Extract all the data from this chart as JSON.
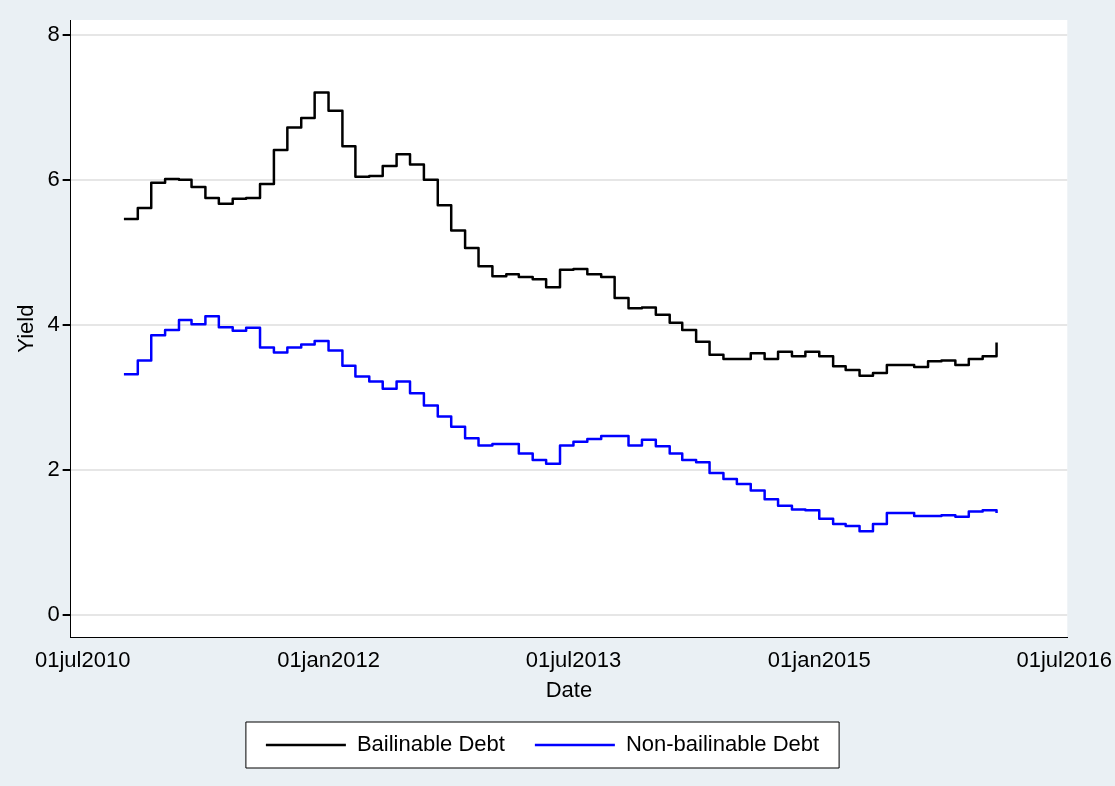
{
  "chart_data": {
    "type": "step",
    "xlabel": "Date",
    "ylabel": "Yield",
    "x": [
      "2010-10",
      "2010-11",
      "2010-12",
      "2011-01",
      "2011-02",
      "2011-03",
      "2011-04",
      "2011-05",
      "2011-06",
      "2011-07",
      "2011-08",
      "2011-09",
      "2011-10",
      "2011-11",
      "2011-12",
      "2012-01",
      "2012-02",
      "2012-03",
      "2012-04",
      "2012-05",
      "2012-06",
      "2012-07",
      "2012-08",
      "2012-09",
      "2012-10",
      "2012-11",
      "2012-12",
      "2013-01",
      "2013-02",
      "2013-03",
      "2013-04",
      "2013-05",
      "2013-06",
      "2013-07",
      "2013-08",
      "2013-09",
      "2013-10",
      "2013-11",
      "2013-12",
      "2014-01",
      "2014-02",
      "2014-03",
      "2014-04",
      "2014-05",
      "2014-06",
      "2014-07",
      "2014-08",
      "2014-09",
      "2014-10",
      "2014-11",
      "2014-12",
      "2015-01",
      "2015-02",
      "2015-03",
      "2015-04",
      "2015-05",
      "2015-06",
      "2015-07",
      "2015-08",
      "2015-09",
      "2015-10",
      "2015-11",
      "2015-12",
      "2016-01",
      "2016-02"
    ],
    "series": [
      {
        "name": "Bailinable Debt",
        "color": "#000000",
        "values": [
          5.46,
          5.61,
          5.96,
          6.01,
          6.0,
          5.9,
          5.75,
          5.67,
          5.74,
          5.75,
          5.94,
          6.41,
          6.72,
          6.85,
          7.2,
          6.95,
          6.46,
          6.04,
          6.05,
          6.19,
          6.35,
          6.21,
          6.0,
          5.65,
          5.3,
          5.06,
          4.81,
          4.67,
          4.7,
          4.66,
          4.63,
          4.52,
          4.76,
          4.77,
          4.7,
          4.66,
          4.37,
          4.23,
          4.24,
          4.14,
          4.03,
          3.93,
          3.77,
          3.59,
          3.53,
          3.53,
          3.61,
          3.53,
          3.63,
          3.57,
          3.63,
          3.57,
          3.43,
          3.38,
          3.3,
          3.34,
          3.45,
          3.45,
          3.42,
          3.5,
          3.51,
          3.45,
          3.53,
          3.57,
          3.76
        ]
      },
      {
        "name": "Non-bailinable Debt",
        "color": "#0000ff",
        "values": [
          3.32,
          3.51,
          3.86,
          3.93,
          4.07,
          4.01,
          4.12,
          3.97,
          3.92,
          3.96,
          3.69,
          3.62,
          3.69,
          3.73,
          3.78,
          3.65,
          3.44,
          3.29,
          3.22,
          3.12,
          3.22,
          3.06,
          2.89,
          2.74,
          2.6,
          2.44,
          2.34,
          2.36,
          2.36,
          2.23,
          2.14,
          2.09,
          2.34,
          2.39,
          2.43,
          2.47,
          2.47,
          2.34,
          2.42,
          2.33,
          2.23,
          2.14,
          2.11,
          1.96,
          1.88,
          1.81,
          1.72,
          1.6,
          1.51,
          1.46,
          1.45,
          1.33,
          1.26,
          1.23,
          1.16,
          1.26,
          1.41,
          1.41,
          1.37,
          1.37,
          1.38,
          1.36,
          1.43,
          1.45,
          1.41
        ]
      }
    ],
    "xlim": [
      "2010-06-04",
      "2016-07-08"
    ],
    "xticks": [
      {
        "value": "2010-07-01",
        "label": "01jul2010"
      },
      {
        "value": "2012-01-01",
        "label": "01jan2012"
      },
      {
        "value": "2013-07-01",
        "label": "01jul2013"
      },
      {
        "value": "2015-01-01",
        "label": "01jan2015"
      },
      {
        "value": "2016-07-01",
        "label": "01jul2016"
      }
    ],
    "ylim": [
      -0.3,
      8.2
    ],
    "yticks": [
      0,
      2,
      4,
      6,
      8
    ],
    "grid": "y",
    "legend": "bottom",
    "marker": "none",
    "line_style": "solid"
  }
}
